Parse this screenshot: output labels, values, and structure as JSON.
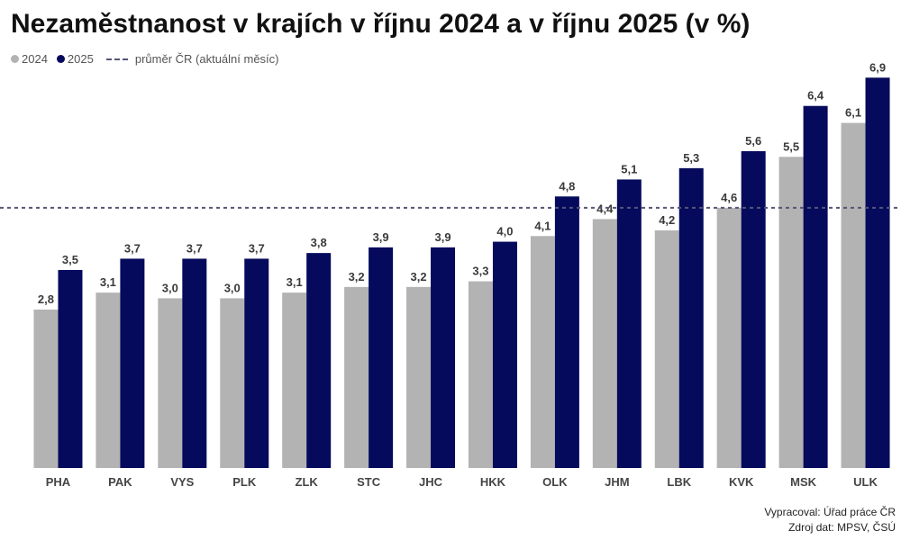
{
  "title": "Nezaměstnanost v krajích v říjnu 2024 a v říjnu 2025 (v %)",
  "legend": {
    "series_2024": "2024",
    "series_2025": "2025",
    "average": "průměr ČR (aktuální měsíc)"
  },
  "colors": {
    "series_2024": "#b3b3b3",
    "series_2025": "#050a5c",
    "average_line": "#555577"
  },
  "footer": {
    "prepared_by": "Vypracoval: Úřad práce ČR",
    "source": "Zdroj dat: MPSV, ČSÚ"
  },
  "chart_data": {
    "type": "bar",
    "title": "Nezaměstnanost v krajích v říjnu 2024 a v říjnu 2025 (v %)",
    "categories": [
      "PHA",
      "PAK",
      "VYS",
      "PLK",
      "ZLK",
      "STC",
      "JHC",
      "HKK",
      "OLK",
      "JHM",
      "LBK",
      "KVK",
      "MSK",
      "ULK"
    ],
    "series": [
      {
        "name": "2024",
        "values": [
          2.8,
          3.1,
          3.0,
          3.0,
          3.1,
          3.2,
          3.2,
          3.3,
          4.1,
          4.4,
          4.2,
          4.6,
          5.5,
          6.1
        ],
        "labels": [
          "2,8",
          "3,1",
          "3,0",
          "3,0",
          "3,1",
          "3,2",
          "3,2",
          "3,3",
          "4,1",
          "4,4",
          "4,2",
          "4,6",
          "5,5",
          "6,1"
        ]
      },
      {
        "name": "2025",
        "values": [
          3.5,
          3.7,
          3.7,
          3.7,
          3.8,
          3.9,
          3.9,
          4.0,
          4.8,
          5.1,
          5.3,
          5.6,
          6.4,
          6.9
        ],
        "labels": [
          "3,5",
          "3,7",
          "3,7",
          "3,7",
          "3,8",
          "3,9",
          "3,9",
          "4,0",
          "4,8",
          "5,1",
          "5,3",
          "5,6",
          "6,4",
          "6,9"
        ]
      }
    ],
    "average_line": 4.6,
    "ylim": [
      0,
      7.0
    ],
    "grid": false,
    "legend_position": "top-left"
  }
}
